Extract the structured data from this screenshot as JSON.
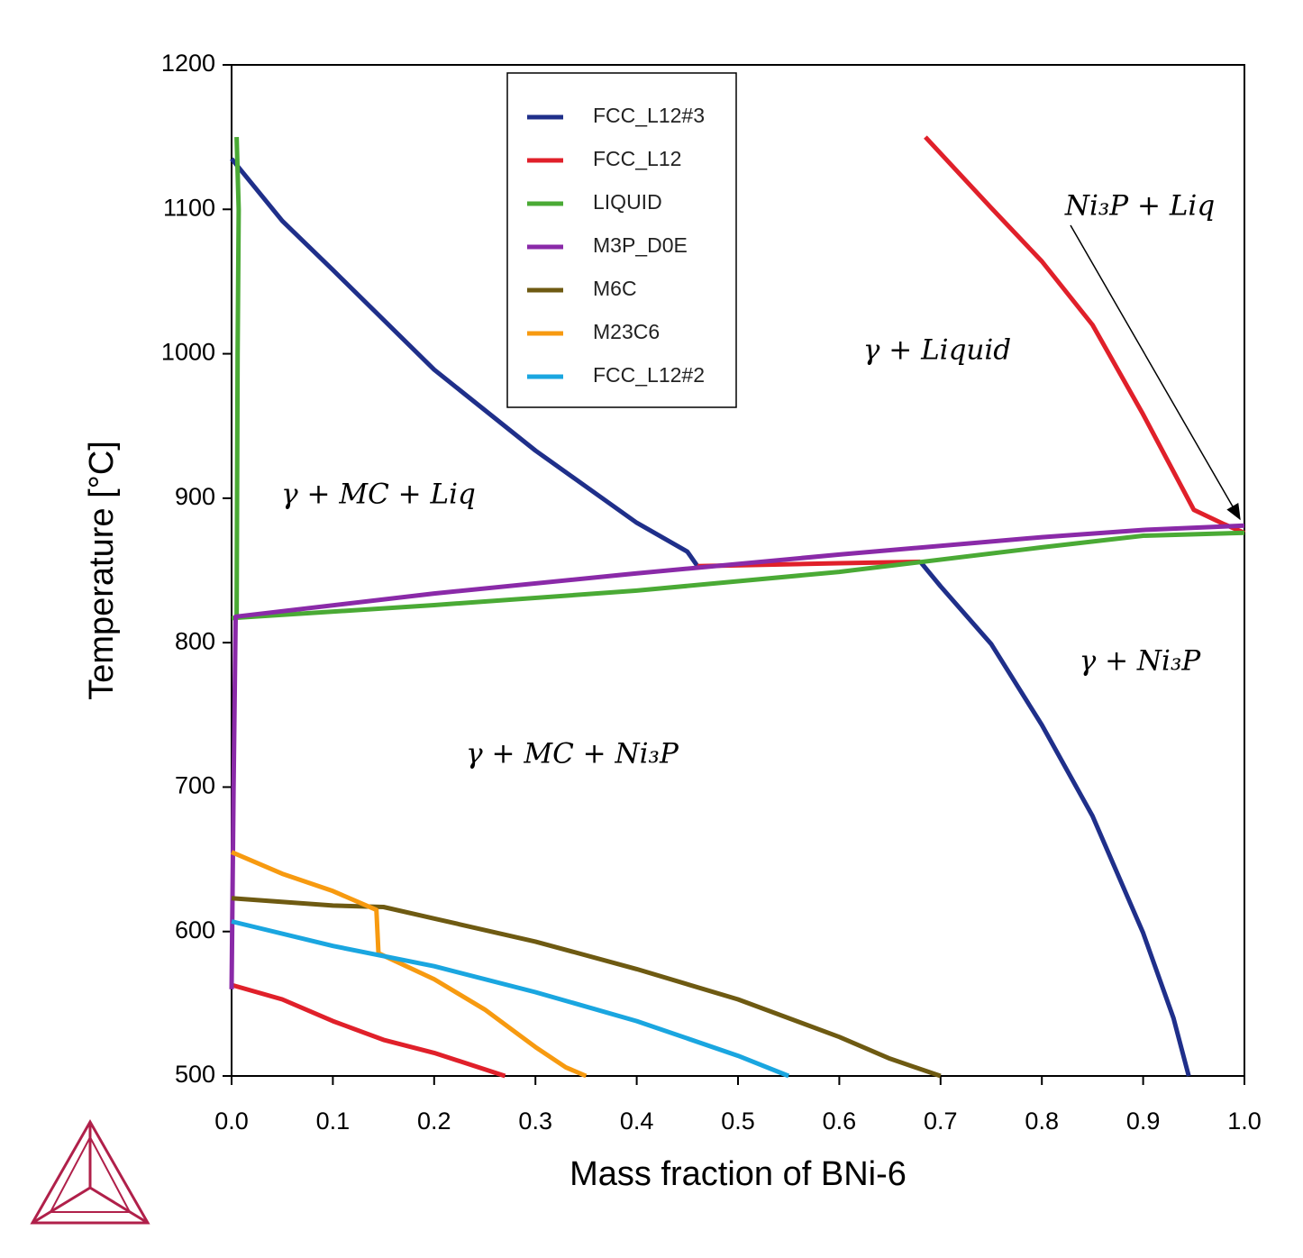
{
  "chart_data": {
    "type": "line",
    "xlabel": "Mass fraction of BNi-6",
    "ylabel": "Temperature [°C]",
    "xlim": [
      0,
      1
    ],
    "ylim": [
      500,
      1200
    ],
    "xticks": [
      {
        "value": 0,
        "label": "0.0"
      },
      0.1,
      0.2,
      0.3,
      0.4,
      0.5,
      0.6,
      0.7,
      0.8,
      0.9,
      {
        "value": 1,
        "label": "1.0"
      }
    ],
    "yticks": [
      500,
      600,
      700,
      800,
      900,
      1000,
      1100,
      1200
    ],
    "grid": false,
    "legend": "upper center",
    "series": [
      {
        "name": "FCC_L12#3",
        "color": "#1f2f8a",
        "x": [
          0,
          0.05,
          0.1,
          0.2,
          0.3,
          0.4,
          0.45,
          0.46,
          null,
          0.68,
          0.7,
          0.75,
          0.8,
          0.85,
          0.9,
          0.93,
          0.945
        ],
        "values": [
          1135,
          1092,
          1058,
          989,
          933,
          883,
          863,
          853,
          null,
          856,
          839,
          799,
          743,
          680,
          599,
          540,
          500
        ]
      },
      {
        "name": "FCC_L12",
        "color": "#e0202a",
        "x": [
          0.685,
          0.75,
          0.8,
          0.85,
          0.9,
          0.95,
          0.98,
          1.0,
          null,
          0.46,
          0.6,
          0.68,
          null,
          0,
          0.05,
          0.1,
          0.15,
          0.2,
          0.27
        ],
        "values": [
          1150,
          1101,
          1064,
          1020,
          958,
          892,
          882,
          876,
          null,
          853,
          855,
          856,
          null,
          563,
          553,
          538,
          525,
          516,
          500
        ]
      },
      {
        "name": "LIQUID",
        "color": "#4aaa35",
        "x": [
          0.005,
          0.007,
          0.006,
          0.005,
          null,
          0,
          0.2,
          0.4,
          0.6,
          0.8,
          0.9,
          1.0
        ],
        "values": [
          1150,
          1100,
          1000,
          817,
          null,
          817,
          826,
          836,
          849,
          866,
          874,
          876
        ]
      },
      {
        "name": "M3P_D0E",
        "color": "#8a2aa8",
        "x": [
          0,
          0.002,
          0.004,
          0.2,
          0.4,
          0.6,
          0.8,
          0.9,
          1.0
        ],
        "values": [
          560,
          700,
          818,
          834,
          848,
          861,
          873,
          878,
          881
        ]
      },
      {
        "name": "M6C",
        "color": "#6e5a12",
        "x": [
          0,
          0.1,
          0.15,
          0.2,
          0.3,
          0.4,
          0.5,
          0.6,
          0.65,
          0.7
        ],
        "values": [
          623,
          618,
          617,
          609,
          593,
          574,
          553,
          527,
          512,
          500
        ]
      },
      {
        "name": "M23C6",
        "color": "#f79a10",
        "x": [
          0,
          0.05,
          0.1,
          0.143,
          0.145,
          0.2,
          0.25,
          0.3,
          0.33,
          0.35
        ],
        "values": [
          655,
          640,
          628,
          615,
          585,
          567,
          546,
          520,
          506,
          500
        ]
      },
      {
        "name": "FCC_L12#2",
        "color": "#1aa6e0",
        "x": [
          0,
          0.1,
          0.2,
          0.3,
          0.4,
          0.5,
          0.55
        ],
        "values": [
          607,
          590,
          576,
          558,
          538,
          514,
          500
        ]
      }
    ],
    "annotations": [
      "γ + MC + Liq",
      "γ + Liquid",
      "Ni₃P + Liq",
      "γ + Ni₃P",
      "γ + MC + Ni₃P"
    ]
  }
}
